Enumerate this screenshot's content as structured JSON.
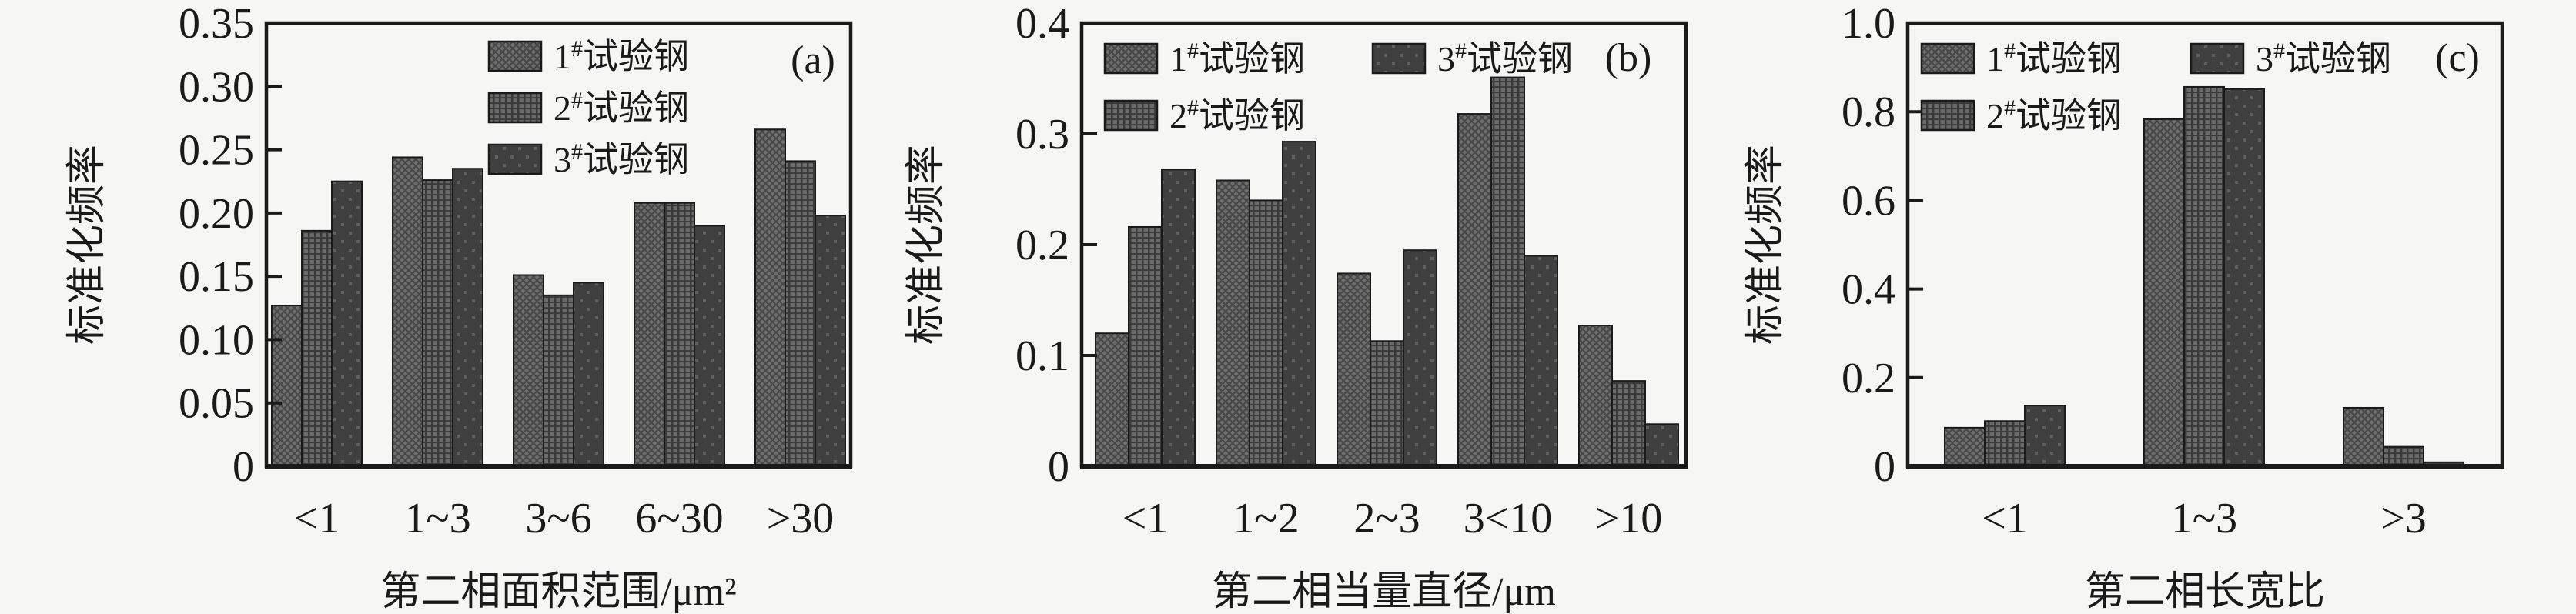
{
  "figure": {
    "background": "#f6f6f5",
    "ink_color": "#1a1a1a",
    "series_styles": [
      {
        "key": "series-1",
        "pattern": "diagonal-crosshatch",
        "base": "#6f6f6f",
        "line": "#484848"
      },
      {
        "key": "series-2",
        "pattern": "grid-plaid",
        "base": "#6a6a6a",
        "line": "#3a3a3a"
      },
      {
        "key": "series-3",
        "pattern": "sparse-dots",
        "base": "#3f3f3f",
        "line": "#5f5f5f"
      }
    ]
  },
  "chart_data": [
    {
      "type": "bar",
      "panel_label": "(a)",
      "ylabel": "标准化频率",
      "xlabel": "第二相面积范围/μm²",
      "categories": [
        "<1",
        "1~3",
        "3~6",
        "6~30",
        ">30"
      ],
      "ylim": [
        0,
        0.35
      ],
      "yticks": [
        "0",
        "0.05",
        "0.10",
        "0.15",
        "0.20",
        "0.25",
        "0.30",
        "0.35"
      ],
      "grid": false,
      "legend_position": "top-inside-single-column",
      "series": [
        {
          "name": "1#试验钢",
          "values": [
            0.127,
            0.244,
            0.151,
            0.208,
            0.266
          ]
        },
        {
          "name": "2#试验钢",
          "values": [
            0.186,
            0.226,
            0.135,
            0.208,
            0.241
          ]
        },
        {
          "name": "3#试验钢",
          "values": [
            0.225,
            0.235,
            0.145,
            0.19,
            0.198
          ]
        }
      ]
    },
    {
      "type": "bar",
      "panel_label": "(b)",
      "ylabel": "标准化频率",
      "xlabel": "第二相当量直径/μm",
      "categories": [
        "<1",
        "1~2",
        "2~3",
        "3<10",
        ">10"
      ],
      "ylim": [
        0,
        0.4
      ],
      "yticks": [
        "0",
        "0.1",
        "0.2",
        "0.3",
        "0.4"
      ],
      "grid": false,
      "legend_position": "top-inside-two-columns",
      "series": [
        {
          "name": "1#试验钢",
          "values": [
            0.12,
            0.258,
            0.174,
            0.318,
            0.127
          ]
        },
        {
          "name": "2#试验钢",
          "values": [
            0.216,
            0.24,
            0.113,
            0.351,
            0.077
          ]
        },
        {
          "name": "3#试验钢",
          "values": [
            0.268,
            0.293,
            0.195,
            0.19,
            0.038
          ]
        }
      ]
    },
    {
      "type": "bar",
      "panel_label": "(c)",
      "ylabel": "标准化频率",
      "xlabel": "第二相长宽比",
      "categories": [
        "<1",
        "1~3",
        ">3"
      ],
      "ylim": [
        0,
        1.0
      ],
      "yticks": [
        "0",
        "0.2",
        "0.4",
        "0.6",
        "0.8",
        "1.0"
      ],
      "grid": false,
      "legend_position": "top-inside-two-columns",
      "series": [
        {
          "name": "1#试验钢",
          "values": [
            0.087,
            0.783,
            0.132
          ]
        },
        {
          "name": "2#试验钢",
          "values": [
            0.102,
            0.856,
            0.044
          ]
        },
        {
          "name": "3#试验钢",
          "values": [
            0.137,
            0.851,
            0.009
          ]
        }
      ]
    }
  ]
}
